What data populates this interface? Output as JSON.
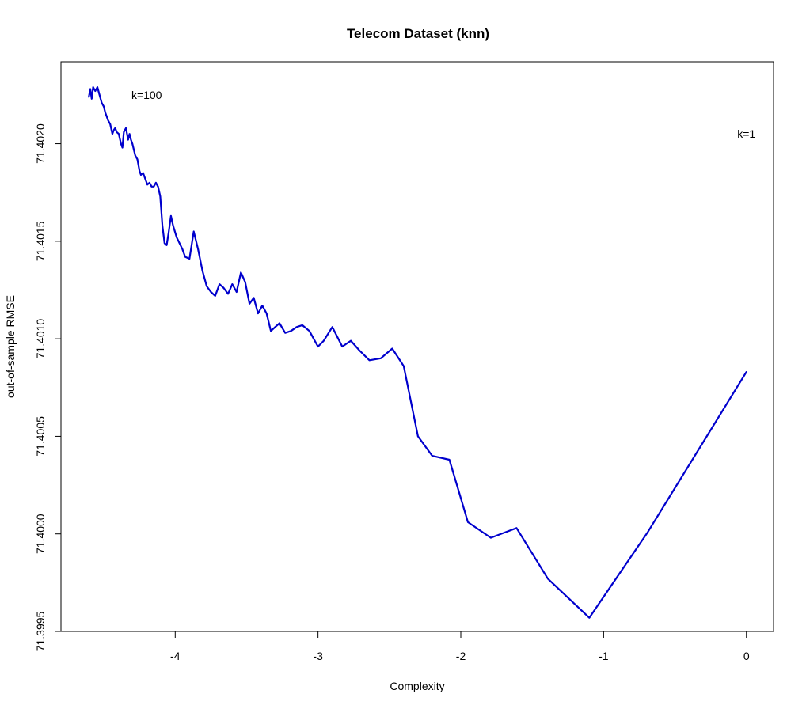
{
  "chart_data": {
    "type": "line",
    "title": "Telecom Dataset (knn)",
    "xlabel": "Complexity",
    "ylabel": "out-of-sample RMSE",
    "xlim": [
      -4.8,
      0.19
    ],
    "ylim": [
      71.3995,
      71.40242
    ],
    "x_ticks": [
      -4,
      -3,
      -2,
      -1,
      0
    ],
    "x_tick_labels": [
      "-4",
      "-3",
      "-2",
      "-1",
      "0"
    ],
    "y_ticks": [
      71.3995,
      71.4,
      71.4005,
      71.401,
      71.4015,
      71.402
    ],
    "y_tick_labels": [
      "71.3995",
      "71.4000",
      "71.4005",
      "71.4010",
      "71.4015",
      "71.4020"
    ],
    "grid": false,
    "legend": "none",
    "series": [
      {
        "color": "#0000cd",
        "x": [
          -4.605,
          -4.595,
          -4.585,
          -4.575,
          -4.56,
          -4.545,
          -4.53,
          -4.515,
          -4.5,
          -4.49,
          -4.48,
          -4.47,
          -4.455,
          -4.44,
          -4.43,
          -4.42,
          -4.41,
          -4.395,
          -4.38,
          -4.37,
          -4.36,
          -4.345,
          -4.33,
          -4.32,
          -4.31,
          -4.3,
          -4.29,
          -4.28,
          -4.265,
          -4.25,
          -4.24,
          -4.225,
          -4.21,
          -4.195,
          -4.18,
          -4.165,
          -4.15,
          -4.135,
          -4.12,
          -4.105,
          -4.09,
          -4.075,
          -4.06,
          -4.045,
          -4.03,
          -4.015,
          -3.99,
          -3.97,
          -3.95,
          -3.93,
          -3.9,
          -3.87,
          -3.84,
          -3.81,
          -3.78,
          -3.75,
          -3.72,
          -3.69,
          -3.66,
          -3.63,
          -3.6,
          -3.57,
          -3.54,
          -3.51,
          -3.48,
          -3.45,
          -3.42,
          -3.39,
          -3.36,
          -3.33,
          -3.3,
          -3.27,
          -3.23,
          -3.19,
          -3.15,
          -3.11,
          -3.06,
          -3.0,
          -2.96,
          -2.9,
          -2.83,
          -2.77,
          -2.71,
          -2.64,
          -2.56,
          -2.48,
          -2.4,
          -2.3,
          -2.2,
          -2.08,
          -1.95,
          -1.79,
          -1.61,
          -1.39,
          -1.1,
          -0.69,
          0.0
        ],
        "y": [
          71.40224,
          71.40228,
          71.40223,
          71.40229,
          71.40227,
          71.40229,
          71.40225,
          71.40221,
          71.40219,
          71.40216,
          71.40214,
          71.40212,
          71.4021,
          71.40205,
          71.40207,
          71.40208,
          71.40206,
          71.40205,
          71.402,
          71.40198,
          71.40206,
          71.40208,
          71.40202,
          71.40205,
          71.40202,
          71.402,
          71.40197,
          71.40194,
          71.40192,
          71.40186,
          71.40184,
          71.40185,
          71.40182,
          71.40179,
          71.4018,
          71.40178,
          71.40178,
          71.4018,
          71.40178,
          71.40173,
          71.40158,
          71.40149,
          71.40148,
          71.40155,
          71.40163,
          71.40158,
          71.40152,
          71.40149,
          71.40146,
          71.40142,
          71.40141,
          71.40155,
          71.40146,
          71.40135,
          71.40127,
          71.40124,
          71.40122,
          71.40128,
          71.40126,
          71.40123,
          71.40128,
          71.40124,
          71.40134,
          71.40129,
          71.40118,
          71.40121,
          71.40113,
          71.40117,
          71.40113,
          71.40104,
          71.40106,
          71.40108,
          71.40103,
          71.40104,
          71.40106,
          71.40107,
          71.40104,
          71.40096,
          71.40099,
          71.40106,
          71.40096,
          71.40099,
          71.40094,
          71.40089,
          71.4009,
          71.40095,
          71.40086,
          71.4005,
          71.4004,
          71.40038,
          71.40006,
          71.39998,
          71.40003,
          71.39977,
          71.39957,
          71.40001,
          71.40083
        ]
      }
    ],
    "annotations": [
      {
        "text": "k=100",
        "x": -4.2,
        "y": 71.40225
      },
      {
        "text": "k=1",
        "x": 0.0,
        "y": 71.40205
      }
    ]
  }
}
